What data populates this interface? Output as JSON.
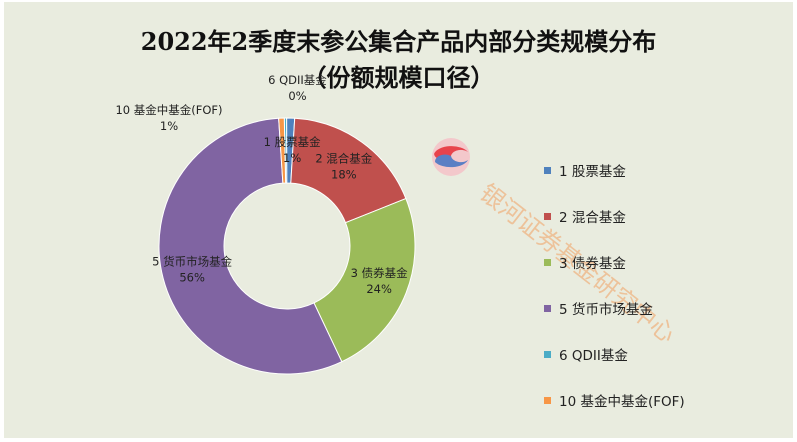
{
  "chart_data": {
    "type": "pie",
    "donut": true,
    "title": "2022年2季度末参公集合产品内部分类规模分布",
    "subtitle": "（份额规模口径）",
    "slices": [
      {
        "name": "1 股票基金",
        "value": 1,
        "label": "1%",
        "color": "#4f81bd"
      },
      {
        "name": "2 混合基金",
        "value": 18,
        "label": "18%",
        "color": "#c0504d"
      },
      {
        "name": "3 债券基金",
        "value": 24,
        "label": "24%",
        "color": "#9bbb59"
      },
      {
        "name": "5 货币市场基金",
        "value": 56,
        "label": "56%",
        "color": "#8064a2"
      },
      {
        "name": "6 QDII基金",
        "value": 0.3,
        "label": "0%",
        "color": "#4bacc6"
      },
      {
        "name": "10 基金中基金(FOF)",
        "value": 0.7,
        "label": "1%",
        "color": "#f79646"
      }
    ],
    "draw_order": [
      4,
      0,
      1,
      2,
      3,
      5
    ],
    "legend_position": "right",
    "background": "#e9ecdf"
  },
  "watermark": {
    "text": "银河证券基金研究中心",
    "color": "#f0a060",
    "logo_colors": [
      "#e8434c",
      "#5b7fc4"
    ]
  }
}
